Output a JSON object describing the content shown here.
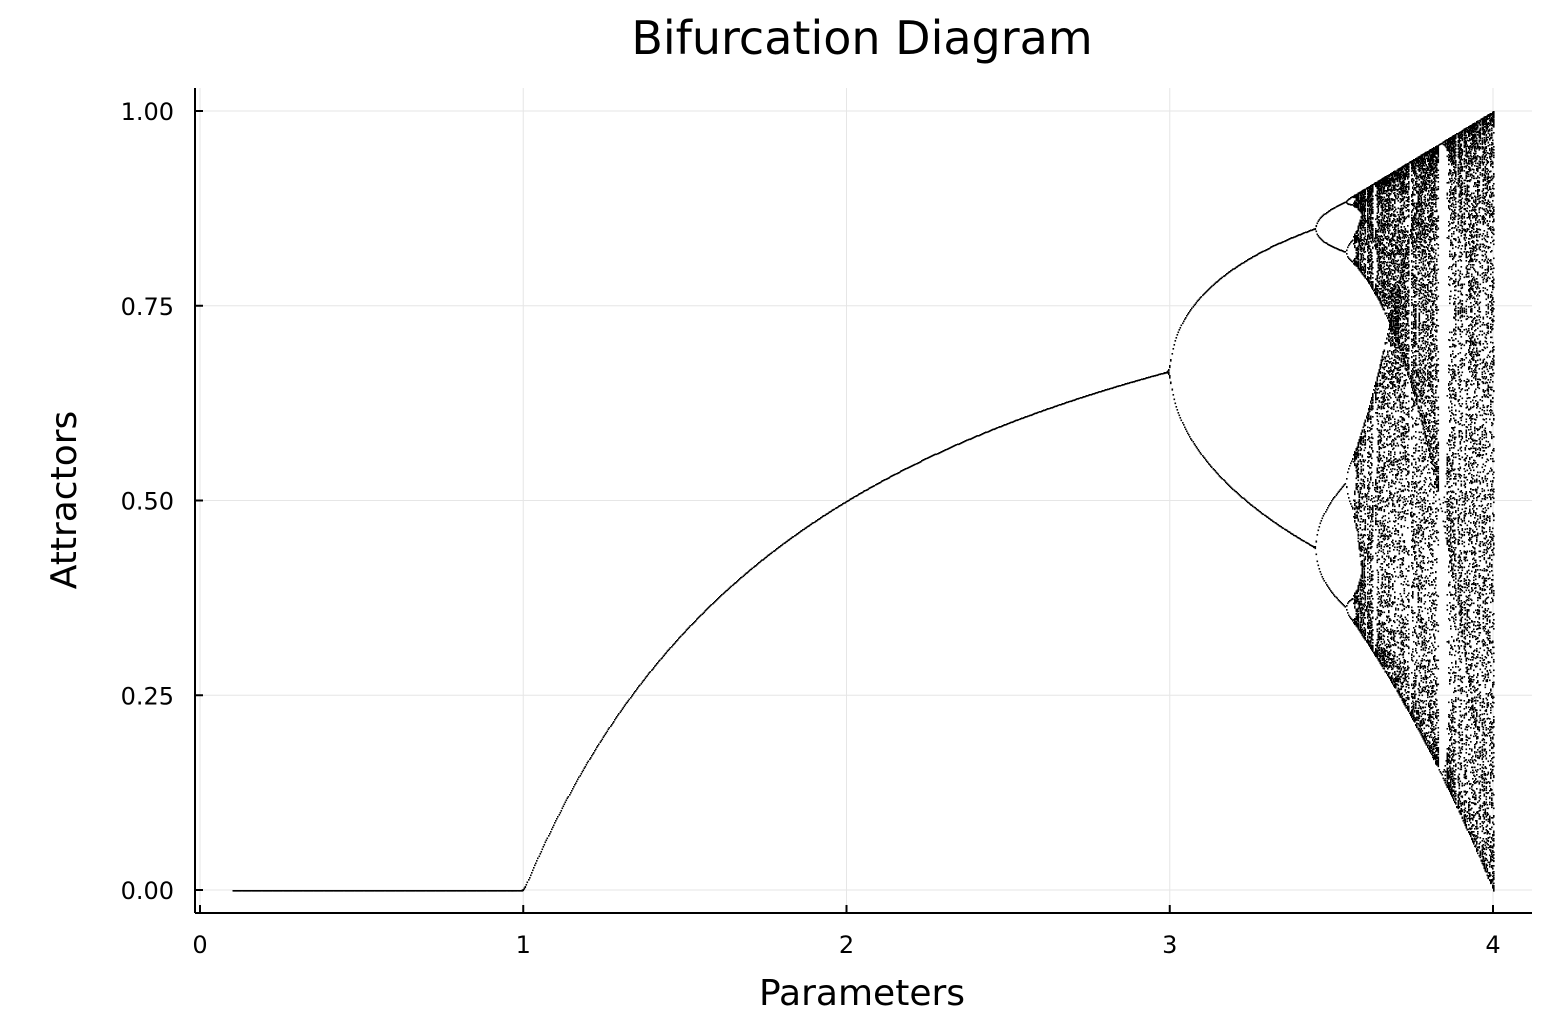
{
  "chart_data": {
    "type": "scatter",
    "title": "Bifurcation Diagram",
    "xlabel": "Parameters",
    "ylabel": "Attractors",
    "xlim": [
      0,
      4
    ],
    "ylim": [
      0,
      1
    ],
    "x_ticks": [
      {
        "value": 0,
        "label": "0"
      },
      {
        "value": 1,
        "label": "1"
      },
      {
        "value": 2,
        "label": "2"
      },
      {
        "value": 3,
        "label": "3"
      },
      {
        "value": 4,
        "label": "4"
      }
    ],
    "y_ticks": [
      {
        "value": 0,
        "label": "0.00"
      },
      {
        "value": 0.25,
        "label": "0.25"
      },
      {
        "value": 0.5,
        "label": "0.50"
      },
      {
        "value": 0.75,
        "label": "0.75"
      },
      {
        "value": 1,
        "label": "1.00"
      }
    ],
    "grid": true,
    "legend": "none",
    "marker_color": "#000000",
    "series": [
      {
        "map": "logistic",
        "r_range": [
          0.1,
          4.0
        ],
        "r_samples": 1200,
        "x0": 0.5,
        "transient_iterations": 400,
        "recorded_iterations": 160
      }
    ]
  }
}
